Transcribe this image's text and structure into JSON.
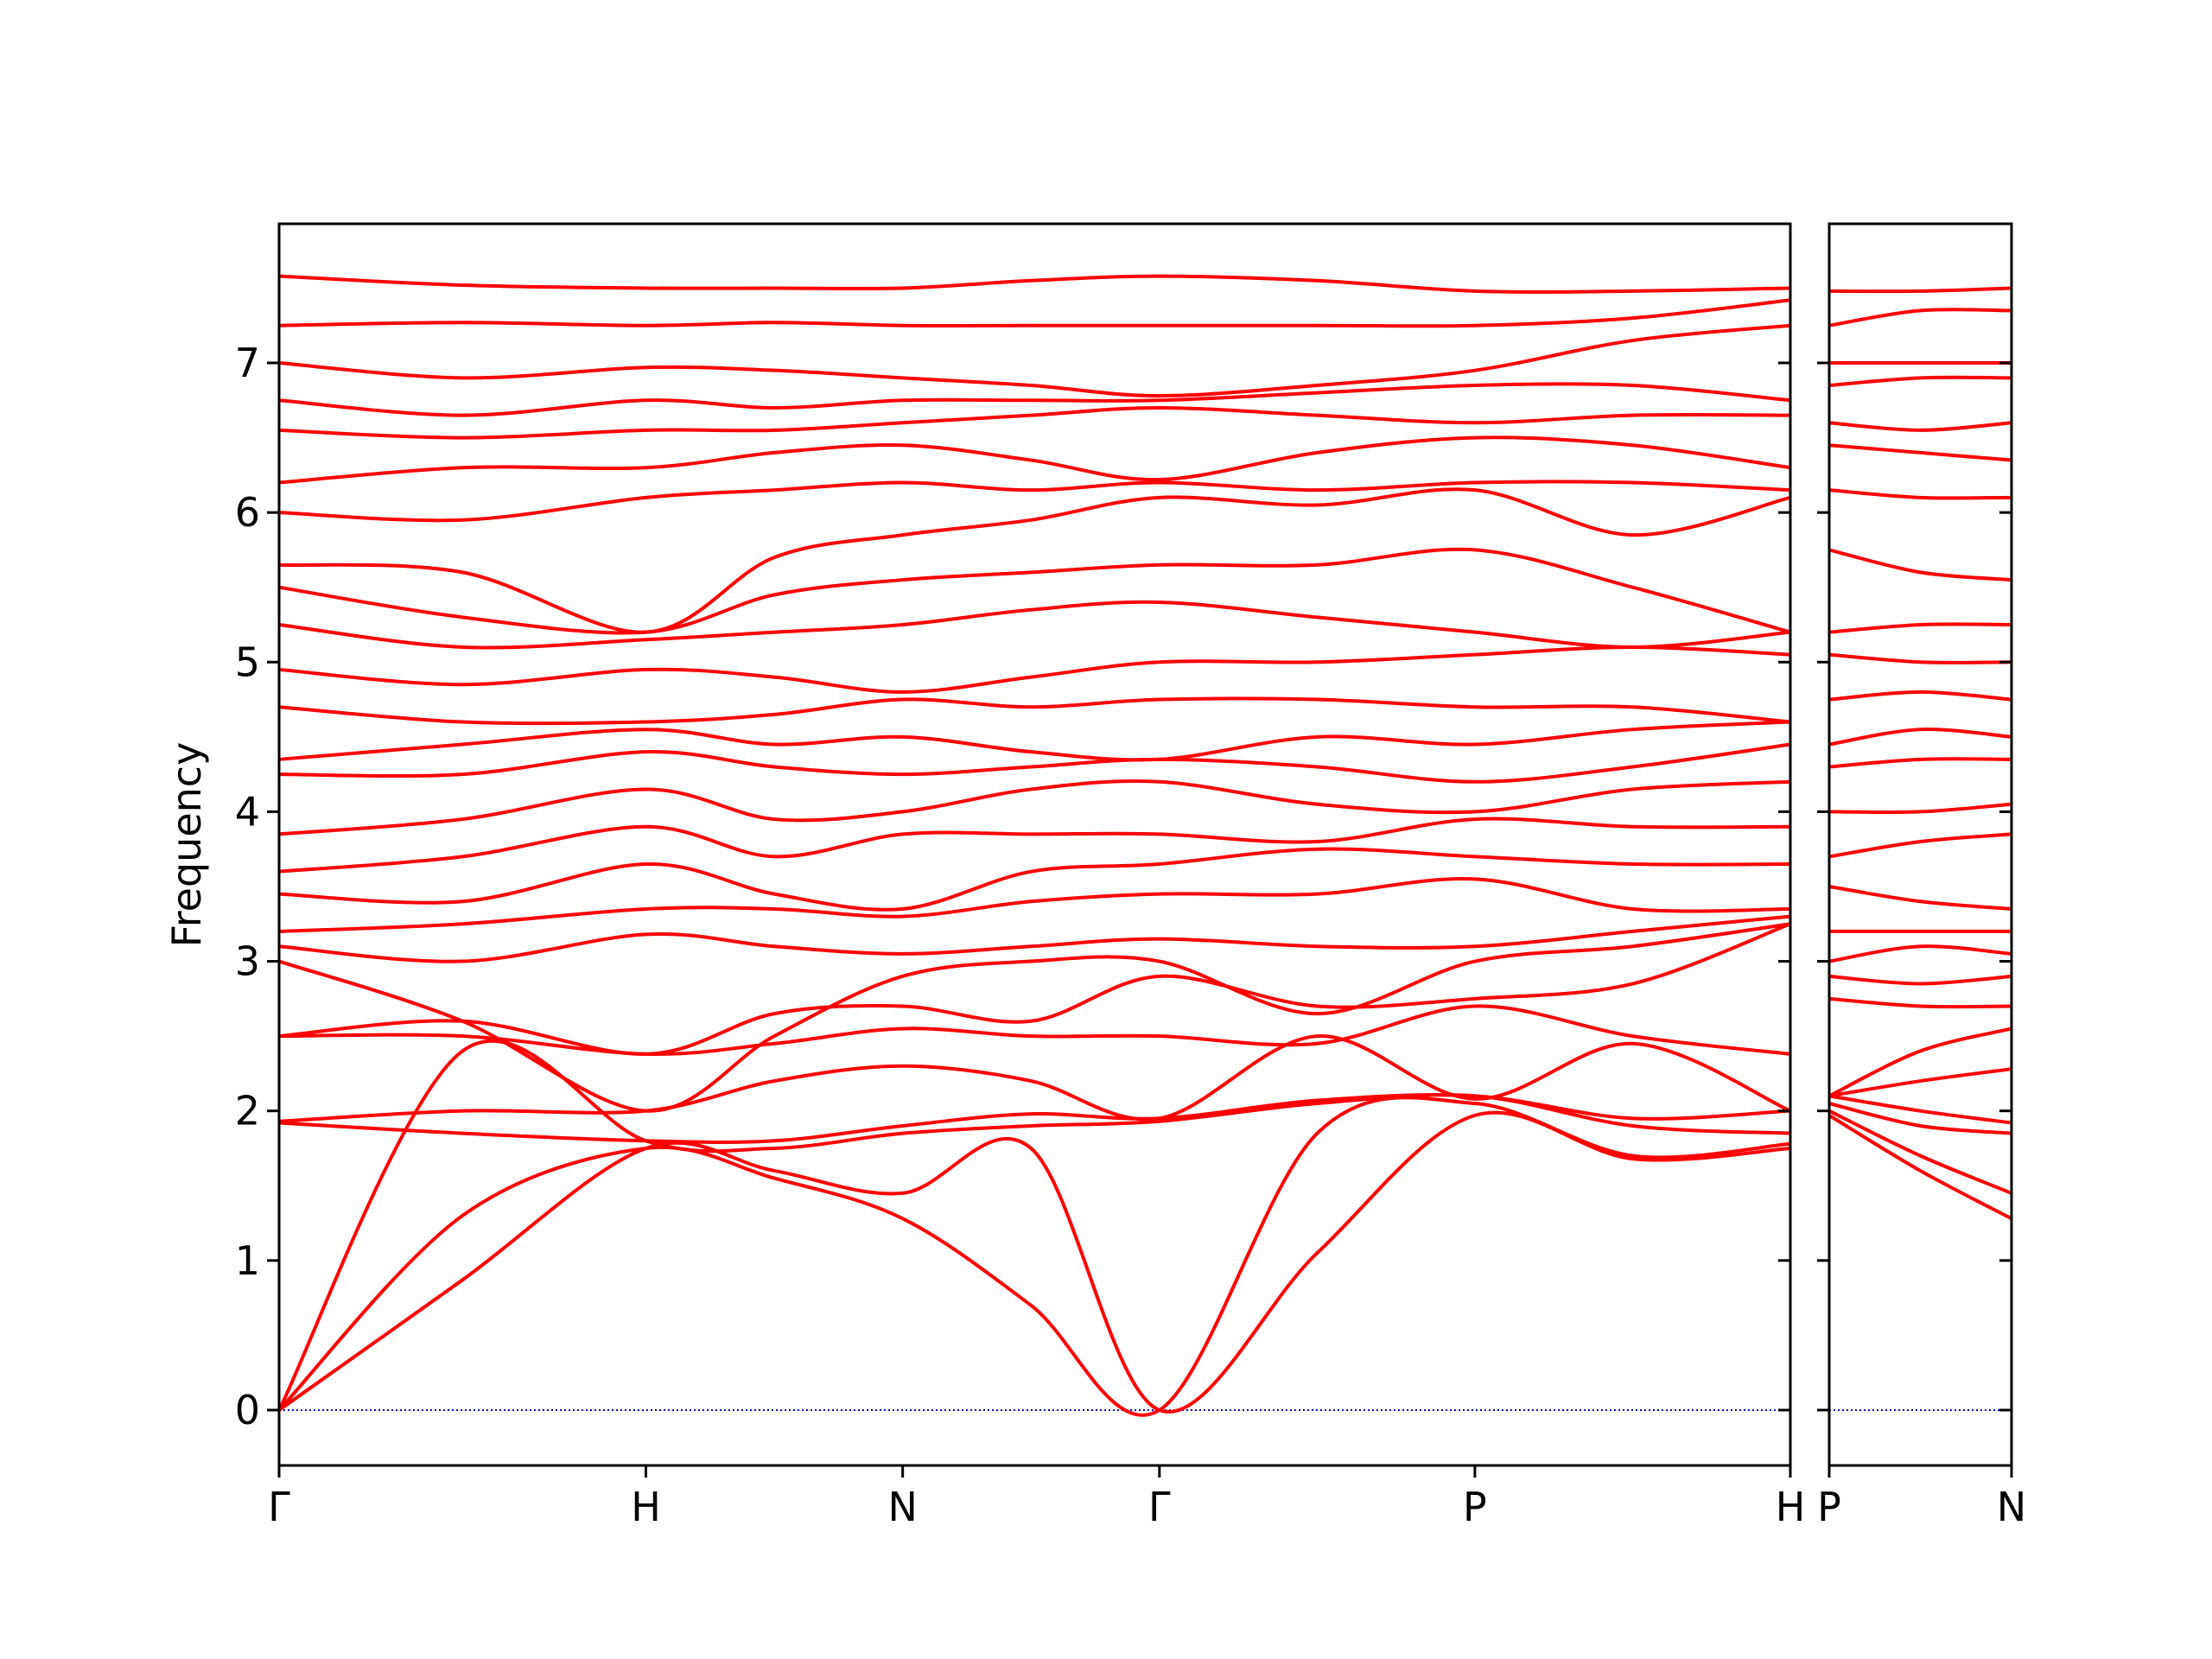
{
  "chart_data": [
    {
      "type": "line",
      "ylabel": "Frequency",
      "color": "#ff0000",
      "x": [
        0,
        0.5,
        1,
        1.35,
        1.7,
        2.05,
        2.4,
        2.83,
        3.26,
        3.69,
        4.12
      ],
      "xlim": [
        0,
        4.12
      ],
      "ylim": [
        -0.37,
        7.93
      ],
      "xticks": [
        {
          "value": 0,
          "label": "Γ"
        },
        {
          "value": 1,
          "label": "H"
        },
        {
          "value": 1.7,
          "label": "N"
        },
        {
          "value": 2.4,
          "label": "Γ"
        },
        {
          "value": 3.26,
          "label": "P"
        },
        {
          "value": 4.12,
          "label": "H"
        }
      ],
      "yticks": [
        0,
        1,
        2,
        3,
        4,
        5,
        6,
        7
      ],
      "reference_line": {
        "value": 0,
        "color": "#0000cc"
      },
      "series": [
        {
          "values": [
            0,
            0.87,
            1.75,
            1.6,
            1.45,
            1.75,
            0,
            1.05,
            1.97,
            1.68,
            1.75
          ]
        },
        {
          "values": [
            0,
            1.3,
            1.75,
            1.55,
            1.28,
            0.7,
            0,
            1.85,
            2.05,
            1.7,
            1.78
          ]
        },
        {
          "values": [
            0,
            2.4,
            1.8,
            1.75,
            1.85,
            1.9,
            1.93,
            2.05,
            2.1,
            1.9,
            1.85
          ]
        },
        {
          "values": [
            1.92,
            1.85,
            1.8,
            1.8,
            1.9,
            1.98,
            1.95,
            2.07,
            2.1,
            1.95,
            2.0
          ]
        },
        {
          "values": [
            1.93,
            2.0,
            2.0,
            2.2,
            2.3,
            2.2,
            1.95,
            2.5,
            2.08,
            2.45,
            2.0
          ]
        },
        {
          "values": [
            2.5,
            2.5,
            2.38,
            2.45,
            2.55,
            2.5,
            2.5,
            2.45,
            2.7,
            2.5,
            2.38
          ]
        },
        {
          "values": [
            2.5,
            2.6,
            2.38,
            2.65,
            2.7,
            2.6,
            2.9,
            2.7,
            2.75,
            2.85,
            3.25
          ]
        },
        {
          "values": [
            3.0,
            2.6,
            2.0,
            2.5,
            2.9,
            3.0,
            3.0,
            2.65,
            3.0,
            3.1,
            3.25
          ]
        },
        {
          "values": [
            3.1,
            3.0,
            3.18,
            3.1,
            3.05,
            3.1,
            3.15,
            3.1,
            3.1,
            3.2,
            3.3
          ]
        },
        {
          "values": [
            3.2,
            3.25,
            3.35,
            3.35,
            3.3,
            3.4,
            3.45,
            3.45,
            3.55,
            3.35,
            3.35
          ]
        },
        {
          "values": [
            3.45,
            3.4,
            3.65,
            3.45,
            3.35,
            3.6,
            3.65,
            3.75,
            3.7,
            3.65,
            3.65
          ]
        },
        {
          "values": [
            3.6,
            3.7,
            3.9,
            3.7,
            3.85,
            3.85,
            3.85,
            3.8,
            3.95,
            3.9,
            3.9
          ]
        },
        {
          "values": [
            3.85,
            3.95,
            4.15,
            3.95,
            4.0,
            4.15,
            4.2,
            4.05,
            4.0,
            4.15,
            4.2
          ]
        },
        {
          "values": [
            4.25,
            4.25,
            4.4,
            4.3,
            4.25,
            4.3,
            4.35,
            4.3,
            4.2,
            4.3,
            4.45
          ]
        },
        {
          "values": [
            4.35,
            4.45,
            4.55,
            4.45,
            4.5,
            4.4,
            4.35,
            4.5,
            4.45,
            4.55,
            4.6
          ]
        },
        {
          "values": [
            4.7,
            4.6,
            4.6,
            4.65,
            4.75,
            4.7,
            4.75,
            4.75,
            4.7,
            4.7,
            4.6
          ]
        },
        {
          "values": [
            4.95,
            4.85,
            4.95,
            4.9,
            4.8,
            4.9,
            5.0,
            5.0,
            5.05,
            5.1,
            5.05
          ]
        },
        {
          "values": [
            5.25,
            5.1,
            5.15,
            5.2,
            5.25,
            5.35,
            5.4,
            5.3,
            5.2,
            5.1,
            5.2
          ]
        },
        {
          "values": [
            5.5,
            5.3,
            5.2,
            5.45,
            5.55,
            5.6,
            5.65,
            5.65,
            5.75,
            5.5,
            5.2
          ]
        },
        {
          "values": [
            5.65,
            5.6,
            5.2,
            5.7,
            5.85,
            5.95,
            6.1,
            6.05,
            6.15,
            5.85,
            6.1
          ]
        },
        {
          "values": [
            6.0,
            5.95,
            6.1,
            6.15,
            6.2,
            6.15,
            6.2,
            6.15,
            6.2,
            6.2,
            6.15
          ]
        },
        {
          "values": [
            6.2,
            6.3,
            6.3,
            6.4,
            6.45,
            6.35,
            6.22,
            6.4,
            6.5,
            6.45,
            6.3
          ]
        },
        {
          "values": [
            6.55,
            6.5,
            6.55,
            6.55,
            6.6,
            6.65,
            6.7,
            6.65,
            6.6,
            6.65,
            6.65
          ]
        },
        {
          "values": [
            6.75,
            6.65,
            6.75,
            6.7,
            6.75,
            6.75,
            6.75,
            6.8,
            6.85,
            6.85,
            6.75
          ]
        },
        {
          "values": [
            7.0,
            6.9,
            6.97,
            6.95,
            6.9,
            6.85,
            6.78,
            6.85,
            6.95,
            7.15,
            7.25
          ]
        },
        {
          "values": [
            7.25,
            7.27,
            7.25,
            7.27,
            7.25,
            7.25,
            7.25,
            7.25,
            7.25,
            7.3,
            7.42
          ]
        },
        {
          "values": [
            7.58,
            7.52,
            7.5,
            7.5,
            7.5,
            7.55,
            7.58,
            7.55,
            7.48,
            7.48,
            7.5
          ]
        }
      ]
    },
    {
      "type": "line",
      "color": "#ff0000",
      "x": [
        0,
        0.25,
        0.5
      ],
      "xlim": [
        0,
        0.5
      ],
      "ylim": [
        -0.37,
        7.93
      ],
      "xticks": [
        {
          "value": 0,
          "label": "P"
        },
        {
          "value": 0.5,
          "label": "N"
        }
      ],
      "yticks": [
        0,
        1,
        2,
        3,
        4,
        5,
        6,
        7
      ],
      "reference_line": {
        "value": 0,
        "color": "#0000cc"
      },
      "series": [
        {
          "values": [
            1.97,
            1.6,
            1.28
          ]
        },
        {
          "values": [
            2.0,
            1.7,
            1.45
          ]
        },
        {
          "values": [
            2.05,
            1.9,
            1.85
          ]
        },
        {
          "values": [
            2.1,
            2.0,
            1.92
          ]
        },
        {
          "values": [
            2.1,
            2.2,
            2.28
          ]
        },
        {
          "values": [
            2.1,
            2.4,
            2.55
          ]
        },
        {
          "values": [
            2.75,
            2.7,
            2.7
          ]
        },
        {
          "values": [
            2.9,
            2.85,
            2.9
          ]
        },
        {
          "values": [
            3.0,
            3.1,
            3.05
          ]
        },
        {
          "values": [
            3.2,
            3.2,
            3.2
          ]
        },
        {
          "values": [
            3.5,
            3.4,
            3.35
          ]
        },
        {
          "values": [
            3.7,
            3.8,
            3.85
          ]
        },
        {
          "values": [
            4.0,
            4.0,
            4.05
          ]
        },
        {
          "values": [
            4.3,
            4.35,
            4.35
          ]
        },
        {
          "values": [
            4.45,
            4.55,
            4.5
          ]
        },
        {
          "values": [
            4.75,
            4.8,
            4.75
          ]
        },
        {
          "values": [
            5.05,
            5.0,
            5.0
          ]
        },
        {
          "values": [
            5.2,
            5.25,
            5.25
          ]
        },
        {
          "values": [
            5.75,
            5.6,
            5.55
          ]
        },
        {
          "values": [
            6.15,
            6.1,
            6.1
          ]
        },
        {
          "values": [
            6.45,
            6.4,
            6.35
          ]
        },
        {
          "values": [
            6.6,
            6.55,
            6.6
          ]
        },
        {
          "values": [
            6.85,
            6.9,
            6.9
          ]
        },
        {
          "values": [
            7.0,
            7.0,
            7.0
          ]
        },
        {
          "values": [
            7.25,
            7.35,
            7.35
          ]
        },
        {
          "values": [
            7.48,
            7.48,
            7.5
          ]
        }
      ]
    }
  ]
}
